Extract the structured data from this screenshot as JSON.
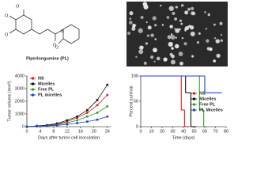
{
  "figure": {
    "structure_label": "Piperlongumine (PL)"
  },
  "chart_data": [
    {
      "type": "line",
      "x_label": "Days after tumor cell inoculation",
      "y_label": "Tumor volume (mm³)",
      "x": [
        0,
        3,
        6,
        9,
        12,
        15,
        18,
        21,
        24
      ],
      "xlim": [
        0,
        25
      ],
      "xticks": [
        0,
        4,
        8,
        12,
        16,
        20,
        24
      ],
      "ylim": [
        0,
        4000
      ],
      "yticks": [
        0,
        1000,
        2000,
        3000,
        4000
      ],
      "legend": "upper-left",
      "series": [
        {
          "name": "NS",
          "color": "#e41a1c",
          "values": [
            0,
            50,
            100,
            200,
            400,
            700,
            1100,
            1700,
            2500
          ]
        },
        {
          "name": "Micelles",
          "color": "#111111",
          "values": [
            0,
            60,
            120,
            250,
            500,
            800,
            1300,
            2100,
            3300
          ]
        },
        {
          "name": "Free PL",
          "color": "#2ca02c",
          "values": [
            0,
            40,
            80,
            150,
            300,
            500,
            800,
            1100,
            1600
          ]
        },
        {
          "name": "PL micelles",
          "color": "#1f3fd6",
          "values": [
            0,
            30,
            60,
            100,
            180,
            280,
            400,
            550,
            800
          ]
        }
      ]
    },
    {
      "type": "step",
      "x_label": "Time (days)",
      "y_label": "Percent survival",
      "xlim": [
        0,
        80
      ],
      "xticks": [
        0,
        10,
        20,
        30,
        40,
        50,
        60,
        70,
        80
      ],
      "ylim": [
        0,
        100
      ],
      "yticks": [
        0,
        50,
        100
      ],
      "legend": "right",
      "series": [
        {
          "name": "NS",
          "color": "#e41a1c",
          "x": [
            0,
            38,
            41,
            45
          ],
          "values": [
            100,
            33,
            0,
            0
          ]
        },
        {
          "name": "Micelles",
          "color": "#111111",
          "x": [
            0,
            42,
            47,
            52
          ],
          "values": [
            100,
            67,
            0,
            0
          ]
        },
        {
          "name": "Free PL",
          "color": "#2ca02c",
          "x": [
            0,
            55,
            59,
            62
          ],
          "values": [
            100,
            33,
            0,
            0
          ]
        },
        {
          "name": "PL Micelles",
          "color": "#1f3fd6",
          "x": [
            0,
            60,
            67,
            76
          ],
          "values": [
            100,
            67,
            67,
            67
          ]
        }
      ]
    }
  ]
}
